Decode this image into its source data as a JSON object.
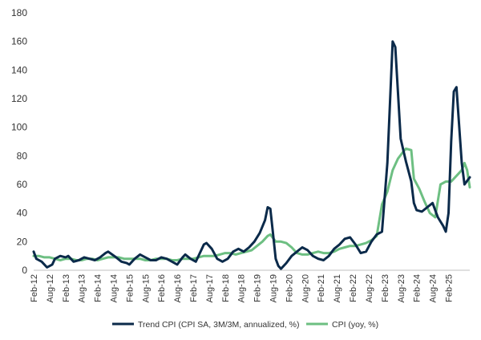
{
  "chart_data": {
    "type": "line",
    "title": "",
    "xlabel": "",
    "ylabel": "",
    "ylim": [
      0,
      180
    ],
    "yticks": [
      0,
      20,
      40,
      60,
      80,
      100,
      120,
      140,
      160,
      180
    ],
    "xlim": [
      "2012-02",
      "2025-10"
    ],
    "xticks": [
      "Feb-12",
      "Aug-12",
      "Feb-13",
      "Aug-13",
      "Feb-14",
      "Aug-14",
      "Feb-15",
      "Aug-15",
      "Feb-16",
      "Aug-16",
      "Feb-17",
      "Aug-17",
      "Feb-18",
      "Aug-18",
      "Feb-19",
      "Aug-19",
      "Feb-20",
      "Aug-20",
      "Feb-21",
      "Aug-21",
      "Feb-22",
      "Aug-22",
      "Feb-23",
      "Aug-23",
      "Feb-24",
      "Aug-24",
      "Feb-25"
    ],
    "grid": false,
    "legend_position": "bottom",
    "series": [
      {
        "name": "Trend CPI (CPI SA, 3M/3M, annualized, %)",
        "color": "#0b2a4a",
        "points": [
          [
            "2012-02",
            13
          ],
          [
            "2012-03",
            8
          ],
          [
            "2012-05",
            6
          ],
          [
            "2012-07",
            2
          ],
          [
            "2012-09",
            4
          ],
          [
            "2012-10",
            8
          ],
          [
            "2012-12",
            10
          ],
          [
            "2013-02",
            9
          ],
          [
            "2013-03",
            10
          ],
          [
            "2013-05",
            6
          ],
          [
            "2013-07",
            7
          ],
          [
            "2013-09",
            9
          ],
          [
            "2013-11",
            8
          ],
          [
            "2014-01",
            7
          ],
          [
            "2014-03",
            9
          ],
          [
            "2014-05",
            12
          ],
          [
            "2014-06",
            13
          ],
          [
            "2014-09",
            9
          ],
          [
            "2014-11",
            6
          ],
          [
            "2015-01",
            5
          ],
          [
            "2015-02",
            4
          ],
          [
            "2015-04",
            8
          ],
          [
            "2015-06",
            11
          ],
          [
            "2015-08",
            9
          ],
          [
            "2015-10",
            7
          ],
          [
            "2015-12",
            7
          ],
          [
            "2016-02",
            9
          ],
          [
            "2016-04",
            8
          ],
          [
            "2016-06",
            6
          ],
          [
            "2016-08",
            4
          ],
          [
            "2016-10",
            9
          ],
          [
            "2016-11",
            11
          ],
          [
            "2017-01",
            8
          ],
          [
            "2017-03",
            6
          ],
          [
            "2017-05",
            14
          ],
          [
            "2017-06",
            18
          ],
          [
            "2017-07",
            19
          ],
          [
            "2017-09",
            15
          ],
          [
            "2017-11",
            8
          ],
          [
            "2018-01",
            6
          ],
          [
            "2018-03",
            8
          ],
          [
            "2018-05",
            13
          ],
          [
            "2018-07",
            15
          ],
          [
            "2018-09",
            13
          ],
          [
            "2018-11",
            16
          ],
          [
            "2019-01",
            20
          ],
          [
            "2019-03",
            26
          ],
          [
            "2019-05",
            35
          ],
          [
            "2019-06",
            44
          ],
          [
            "2019-07",
            43
          ],
          [
            "2019-08",
            26
          ],
          [
            "2019-09",
            8
          ],
          [
            "2019-10",
            3
          ],
          [
            "2019-11",
            1
          ],
          [
            "2020-01",
            5
          ],
          [
            "2020-03",
            10
          ],
          [
            "2020-05",
            13
          ],
          [
            "2020-07",
            16
          ],
          [
            "2020-09",
            14
          ],
          [
            "2020-11",
            10
          ],
          [
            "2021-01",
            8
          ],
          [
            "2021-03",
            7
          ],
          [
            "2021-05",
            10
          ],
          [
            "2021-07",
            15
          ],
          [
            "2021-09",
            18
          ],
          [
            "2021-11",
            22
          ],
          [
            "2022-01",
            23
          ],
          [
            "2022-03",
            18
          ],
          [
            "2022-05",
            12
          ],
          [
            "2022-07",
            13
          ],
          [
            "2022-09",
            20
          ],
          [
            "2022-11",
            25
          ],
          [
            "2023-01",
            27
          ],
          [
            "2023-03",
            75
          ],
          [
            "2023-05",
            160
          ],
          [
            "2023-06",
            156
          ],
          [
            "2023-08",
            92
          ],
          [
            "2023-10",
            76
          ],
          [
            "2023-12",
            62
          ],
          [
            "2024-01",
            47
          ],
          [
            "2024-02",
            42
          ],
          [
            "2024-04",
            41
          ],
          [
            "2024-06",
            44
          ],
          [
            "2024-08",
            47
          ],
          [
            "2024-10",
            37
          ],
          [
            "2024-12",
            31
          ],
          [
            "2025-01",
            27
          ],
          [
            "2025-02",
            40
          ],
          [
            "2025-03",
            90
          ],
          [
            "2025-04",
            125
          ],
          [
            "2025-05",
            128
          ],
          [
            "2025-07",
            75
          ],
          [
            "2025-08",
            60
          ],
          [
            "2025-10",
            65
          ]
        ]
      },
      {
        "name": "CPI (yoy, %)",
        "color": "#6dbf82",
        "points": [
          [
            "2012-02",
            10
          ],
          [
            "2012-04",
            10
          ],
          [
            "2012-06",
            9
          ],
          [
            "2012-08",
            9
          ],
          [
            "2012-10",
            8
          ],
          [
            "2012-12",
            7
          ],
          [
            "2013-02",
            8
          ],
          [
            "2013-04",
            8
          ],
          [
            "2013-06",
            7
          ],
          [
            "2013-08",
            7
          ],
          [
            "2013-10",
            8
          ],
          [
            "2013-12",
            8
          ],
          [
            "2014-02",
            7
          ],
          [
            "2014-04",
            8
          ],
          [
            "2014-06",
            9
          ],
          [
            "2014-08",
            9
          ],
          [
            "2014-10",
            9
          ],
          [
            "2014-12",
            8
          ],
          [
            "2015-02",
            8
          ],
          [
            "2015-04",
            8
          ],
          [
            "2015-06",
            8
          ],
          [
            "2015-08",
            7
          ],
          [
            "2015-10",
            7
          ],
          [
            "2015-12",
            8
          ],
          [
            "2016-02",
            8
          ],
          [
            "2016-04",
            8
          ],
          [
            "2016-06",
            7
          ],
          [
            "2016-08",
            7
          ],
          [
            "2016-10",
            8
          ],
          [
            "2016-12",
            8
          ],
          [
            "2017-02",
            8
          ],
          [
            "2017-04",
            9
          ],
          [
            "2017-06",
            10
          ],
          [
            "2017-08",
            10
          ],
          [
            "2017-10",
            10
          ],
          [
            "2017-12",
            11
          ],
          [
            "2018-02",
            12
          ],
          [
            "2018-04",
            12
          ],
          [
            "2018-06",
            11
          ],
          [
            "2018-08",
            12
          ],
          [
            "2018-10",
            13
          ],
          [
            "2018-12",
            14
          ],
          [
            "2019-02",
            17
          ],
          [
            "2019-04",
            20
          ],
          [
            "2019-06",
            24
          ],
          [
            "2019-07",
            25
          ],
          [
            "2019-09",
            20
          ],
          [
            "2019-11",
            20
          ],
          [
            "2020-01",
            19
          ],
          [
            "2020-03",
            16
          ],
          [
            "2020-05",
            12
          ],
          [
            "2020-07",
            11
          ],
          [
            "2020-09",
            11
          ],
          [
            "2020-11",
            12
          ],
          [
            "2021-01",
            13
          ],
          [
            "2021-03",
            12
          ],
          [
            "2021-05",
            12
          ],
          [
            "2021-07",
            13
          ],
          [
            "2021-09",
            15
          ],
          [
            "2021-11",
            16
          ],
          [
            "2022-01",
            17
          ],
          [
            "2022-03",
            17
          ],
          [
            "2022-05",
            18
          ],
          [
            "2022-07",
            19
          ],
          [
            "2022-09",
            21
          ],
          [
            "2022-11",
            24
          ],
          [
            "2023-01",
            46
          ],
          [
            "2023-03",
            55
          ],
          [
            "2023-05",
            70
          ],
          [
            "2023-07",
            78
          ],
          [
            "2023-09",
            83
          ],
          [
            "2023-10",
            85
          ],
          [
            "2023-12",
            84
          ],
          [
            "2024-01",
            64
          ],
          [
            "2024-03",
            57
          ],
          [
            "2024-05",
            48
          ],
          [
            "2024-07",
            40
          ],
          [
            "2024-09",
            37
          ],
          [
            "2024-11",
            60
          ],
          [
            "2025-01",
            62
          ],
          [
            "2025-03",
            62
          ],
          [
            "2025-05",
            66
          ],
          [
            "2025-07",
            70
          ],
          [
            "2025-08",
            75
          ],
          [
            "2025-09",
            70
          ],
          [
            "2025-10",
            58
          ]
        ]
      }
    ]
  }
}
